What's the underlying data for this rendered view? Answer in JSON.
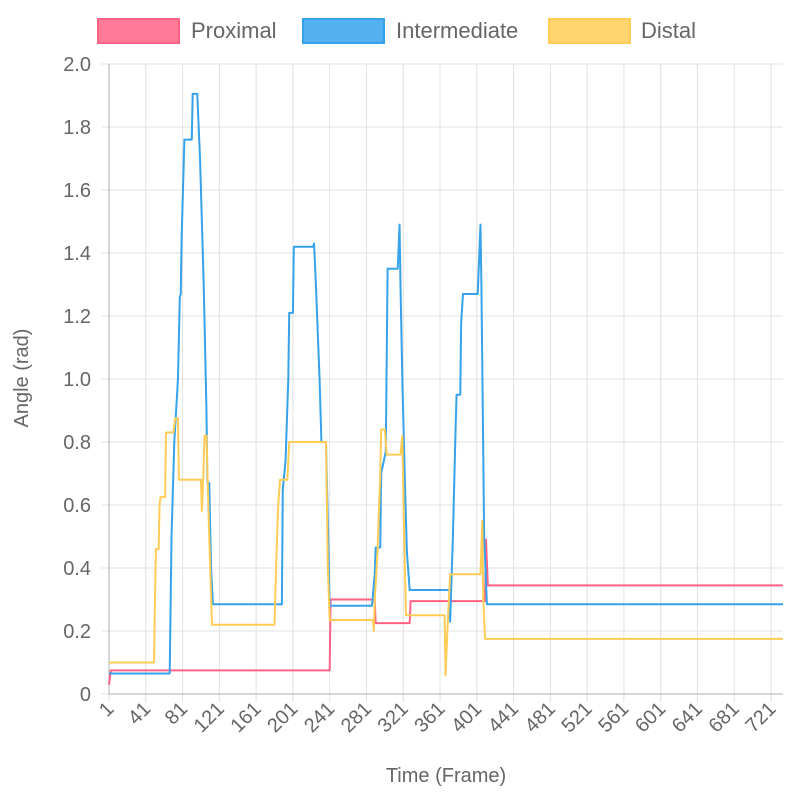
{
  "chart_data": {
    "type": "line",
    "title": "",
    "xlabel": "Time (Frame)",
    "ylabel": "Angle (rad)",
    "xlim": [
      1,
      734
    ],
    "ylim": [
      0,
      2.0
    ],
    "x_ticks": [
      1,
      41,
      81,
      121,
      161,
      201,
      241,
      281,
      321,
      361,
      401,
      441,
      481,
      521,
      561,
      601,
      641,
      681,
      721
    ],
    "x_tick_labels": [
      "1",
      "41",
      "81",
      "121",
      "161",
      "201",
      "241",
      "281",
      "321",
      "361",
      "401",
      "441",
      "481",
      "521",
      "561",
      "601",
      "641",
      "681",
      "721"
    ],
    "y_ticks": [
      0,
      0.2,
      0.4,
      0.6,
      0.8,
      1.0,
      1.2,
      1.4,
      1.6,
      1.8,
      2.0
    ],
    "y_tick_labels": [
      "0",
      "0.2",
      "0.4",
      "0.6",
      "0.8",
      "1.0",
      "1.2",
      "1.4",
      "1.6",
      "1.8",
      "2.0"
    ],
    "grid": true,
    "legend_position": "top-center",
    "series": [
      {
        "name": "Proximal",
        "color": "#ff6384",
        "points": [
          [
            1,
            0.03
          ],
          [
            3,
            0.075
          ],
          [
            241,
            0.075
          ],
          [
            242,
            0.3
          ],
          [
            290,
            0.3
          ],
          [
            291,
            0.225
          ],
          [
            328,
            0.225
          ],
          [
            329,
            0.295
          ],
          [
            410,
            0.295
          ],
          [
            411,
            0.49
          ],
          [
            413,
            0.345
          ],
          [
            734,
            0.345
          ]
        ]
      },
      {
        "name": "Intermediate",
        "color": "#36a2eb",
        "points": [
          [
            1,
            0.065
          ],
          [
            67,
            0.065
          ],
          [
            69,
            0.5
          ],
          [
            72,
            0.8
          ],
          [
            76,
            1.0
          ],
          [
            78,
            1.26
          ],
          [
            79,
            1.27
          ],
          [
            80,
            1.45
          ],
          [
            83,
            1.76
          ],
          [
            91,
            1.76
          ],
          [
            92,
            1.905
          ],
          [
            97,
            1.905
          ],
          [
            100,
            1.7
          ],
          [
            104,
            1.3
          ],
          [
            107,
            0.9
          ],
          [
            108,
            0.67
          ],
          [
            110,
            0.67
          ],
          [
            112,
            0.4
          ],
          [
            114,
            0.285
          ],
          [
            189,
            0.285
          ],
          [
            190,
            0.65
          ],
          [
            193,
            0.74
          ],
          [
            196,
            1.0
          ],
          [
            197,
            1.21
          ],
          [
            201,
            1.21
          ],
          [
            202,
            1.42
          ],
          [
            223,
            1.42
          ],
          [
            224,
            1.43
          ],
          [
            226,
            1.3
          ],
          [
            230,
            1.0
          ],
          [
            232,
            0.8
          ],
          [
            237,
            0.8
          ],
          [
            239,
            0.55
          ],
          [
            241,
            0.28
          ],
          [
            287,
            0.28
          ],
          [
            290,
            0.38
          ],
          [
            291,
            0.465
          ],
          [
            296,
            0.465
          ],
          [
            297,
            0.7
          ],
          [
            302,
            0.77
          ],
          [
            304,
            1.35
          ],
          [
            315,
            1.35
          ],
          [
            317,
            1.49
          ],
          [
            318,
            1.3
          ],
          [
            320,
            1.0
          ],
          [
            323,
            0.65
          ],
          [
            325,
            0.45
          ],
          [
            328,
            0.33
          ],
          [
            371,
            0.33
          ],
          [
            372,
            0.23
          ],
          [
            375,
            0.5
          ],
          [
            378,
            0.85
          ],
          [
            379,
            0.95
          ],
          [
            383,
            0.95
          ],
          [
            384,
            1.18
          ],
          [
            386,
            1.27
          ],
          [
            402,
            1.27
          ],
          [
            405,
            1.49
          ],
          [
            406,
            1.3
          ],
          [
            409,
            0.5
          ],
          [
            412,
            0.285
          ],
          [
            734,
            0.285
          ]
        ]
      },
      {
        "name": "Distal",
        "color": "#ffcd56",
        "points": [
          [
            1,
            0.1
          ],
          [
            50,
            0.1
          ],
          [
            51,
            0.3
          ],
          [
            52,
            0.46
          ],
          [
            55,
            0.46
          ],
          [
            56,
            0.6
          ],
          [
            57,
            0.625
          ],
          [
            62,
            0.625
          ],
          [
            63,
            0.83
          ],
          [
            71,
            0.83
          ],
          [
            73,
            0.875
          ],
          [
            76,
            0.875
          ],
          [
            77,
            0.68
          ],
          [
            101,
            0.68
          ],
          [
            102,
            0.58
          ],
          [
            103,
            0.65
          ],
          [
            105,
            0.82
          ],
          [
            107,
            0.82
          ],
          [
            109,
            0.6
          ],
          [
            111,
            0.4
          ],
          [
            113,
            0.22
          ],
          [
            181,
            0.22
          ],
          [
            183,
            0.43
          ],
          [
            185,
            0.6
          ],
          [
            187,
            0.68
          ],
          [
            195,
            0.68
          ],
          [
            197,
            0.8
          ],
          [
            237,
            0.8
          ],
          [
            239,
            0.4
          ],
          [
            241,
            0.235
          ],
          [
            288,
            0.235
          ],
          [
            289,
            0.2
          ],
          [
            290,
            0.3
          ],
          [
            293,
            0.45
          ],
          [
            296,
            0.7
          ],
          [
            297,
            0.84
          ],
          [
            301,
            0.84
          ],
          [
            303,
            0.76
          ],
          [
            318,
            0.76
          ],
          [
            320,
            0.82
          ],
          [
            322,
            0.5
          ],
          [
            324,
            0.25
          ],
          [
            366,
            0.25
          ],
          [
            367,
            0.06
          ],
          [
            369,
            0.2
          ],
          [
            372,
            0.38
          ],
          [
            405,
            0.38
          ],
          [
            407,
            0.55
          ],
          [
            408,
            0.3
          ],
          [
            410,
            0.175
          ],
          [
            734,
            0.175
          ]
        ]
      }
    ]
  }
}
